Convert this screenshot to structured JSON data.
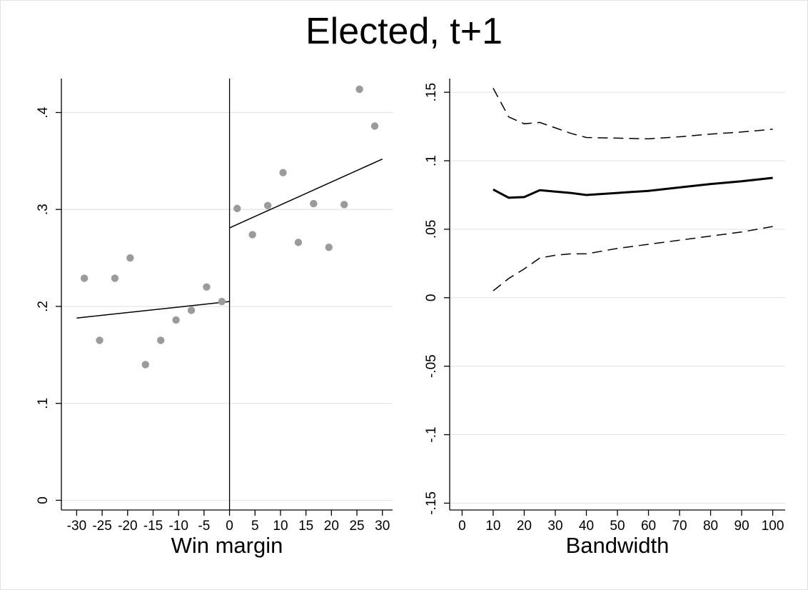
{
  "title": "Elected, t+1",
  "chart_data": [
    {
      "type": "scatter",
      "xlabel": "Win margin",
      "ylabel": "",
      "xlim": [
        -33,
        32
      ],
      "ylim": [
        -0.01,
        0.435
      ],
      "xticks": [
        -30,
        -25,
        -20,
        -15,
        -10,
        -5,
        0,
        5,
        10,
        15,
        20,
        25,
        30
      ],
      "xtick_labels": [
        "-30",
        "-25",
        "-20",
        "-15",
        "-10",
        "-5",
        "0",
        "5",
        "10",
        "15",
        "20",
        "25",
        "30"
      ],
      "yticks": [
        0,
        0.1,
        0.2,
        0.3,
        0.4
      ],
      "ytick_labels": [
        "0",
        ".1",
        ".2",
        ".3",
        ".4"
      ],
      "grid": true,
      "cutoff_line": 0,
      "points": [
        {
          "x": -28.5,
          "y": 0.229
        },
        {
          "x": -25.5,
          "y": 0.165
        },
        {
          "x": -22.5,
          "y": 0.229
        },
        {
          "x": -19.5,
          "y": 0.25
        },
        {
          "x": -16.5,
          "y": 0.14
        },
        {
          "x": -13.5,
          "y": 0.165
        },
        {
          "x": -10.5,
          "y": 0.186
        },
        {
          "x": -7.5,
          "y": 0.196
        },
        {
          "x": -4.5,
          "y": 0.22
        },
        {
          "x": -1.5,
          "y": 0.205
        },
        {
          "x": 1.5,
          "y": 0.301
        },
        {
          "x": 4.5,
          "y": 0.274
        },
        {
          "x": 7.5,
          "y": 0.304
        },
        {
          "x": 10.5,
          "y": 0.338
        },
        {
          "x": 13.5,
          "y": 0.266
        },
        {
          "x": 16.5,
          "y": 0.306
        },
        {
          "x": 19.5,
          "y": 0.261
        },
        {
          "x": 22.5,
          "y": 0.305
        },
        {
          "x": 25.5,
          "y": 0.424
        },
        {
          "x": 28.5,
          "y": 0.386
        }
      ],
      "fit_lines": [
        {
          "x": [
            -30,
            0
          ],
          "y": [
            0.188,
            0.205
          ]
        },
        {
          "x": [
            0,
            30
          ],
          "y": [
            0.281,
            0.352
          ]
        }
      ],
      "colors": {
        "points": "#9b9b9b",
        "lines": "#000000",
        "grid": "#e4e4e4"
      }
    },
    {
      "type": "line",
      "xlabel": "Bandwidth",
      "ylabel": "",
      "xlim": [
        -4,
        104
      ],
      "ylim": [
        -0.155,
        0.16
      ],
      "xticks": [
        0,
        10,
        20,
        30,
        40,
        50,
        60,
        70,
        80,
        90,
        100
      ],
      "xtick_labels": [
        "0",
        "10",
        "20",
        "30",
        "40",
        "50",
        "60",
        "70",
        "80",
        "90",
        "100"
      ],
      "yticks": [
        -0.15,
        -0.1,
        -0.05,
        0,
        0.05,
        0.1,
        0.15
      ],
      "ytick_labels": [
        "-.15",
        "-.1",
        "-.05",
        "0",
        ".05",
        ".1",
        ".15"
      ],
      "grid": true,
      "x": [
        10,
        15,
        20,
        25,
        30,
        35,
        40,
        50,
        60,
        70,
        80,
        90,
        100
      ],
      "series": [
        {
          "style": "solid",
          "values": [
            0.079,
            0.073,
            0.0735,
            0.0785,
            0.0775,
            0.0765,
            0.075,
            0.0765,
            0.078,
            0.0805,
            0.083,
            0.085,
            0.0875
          ]
        },
        {
          "style": "dashed",
          "values": [
            0.153,
            0.132,
            0.127,
            0.128,
            0.124,
            0.12,
            0.117,
            0.1165,
            0.116,
            0.1175,
            0.1195,
            0.121,
            0.123
          ]
        },
        {
          "style": "dashed",
          "values": [
            0.005,
            0.014,
            0.021,
            0.029,
            0.031,
            0.032,
            0.032,
            0.036,
            0.039,
            0.042,
            0.045,
            0.048,
            0.052
          ]
        }
      ],
      "colors": {
        "lines": "#000000",
        "grid": "#e4e4e4"
      }
    }
  ]
}
